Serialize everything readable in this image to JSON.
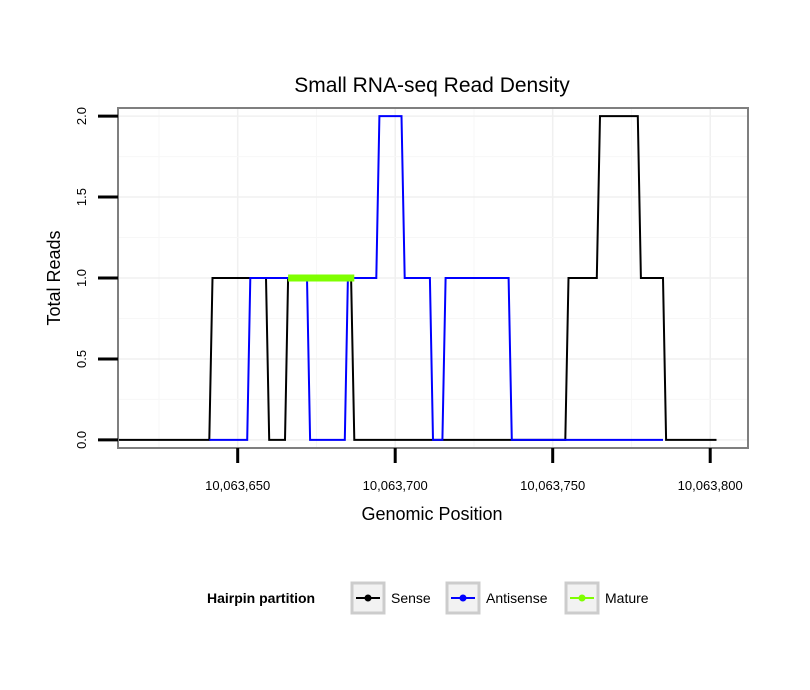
{
  "chart_data": {
    "type": "line",
    "title": "Small RNA-seq Read Density",
    "xlabel": "Genomic Position",
    "ylabel": "Total Reads",
    "xlim": [
      10063612,
      10063812
    ],
    "ylim": [
      -0.05,
      2.05
    ],
    "x_ticks": [
      10063650,
      10063700,
      10063750,
      10063800
    ],
    "x_tick_labels": [
      "10,063,650",
      "10,063,700",
      "10,063,750",
      "10,063,800"
    ],
    "y_ticks": [
      0,
      0.5,
      1,
      1.5,
      2
    ],
    "y_tick_labels": [
      "0.0",
      "0.5",
      "1.0",
      "1.5",
      "2.0"
    ],
    "grid": true,
    "legend": {
      "title": "Hairpin partition",
      "position": "bottom",
      "entries": [
        "Sense",
        "Antisense",
        "Mature"
      ]
    },
    "series": [
      {
        "name": "Sense",
        "color": "#000000",
        "x": [
          10063612,
          10063641,
          10063642,
          10063654,
          10063655,
          10063659,
          10063660,
          10063665,
          10063666,
          10063686,
          10063687,
          10063754,
          10063755,
          10063764,
          10063765,
          10063766,
          10063777,
          10063778,
          10063785,
          10063786,
          10063802
        ],
        "y": [
          0,
          0,
          1,
          1,
          1,
          1,
          0,
          0,
          1,
          1,
          0,
          0,
          1,
          1,
          2,
          2,
          2,
          1,
          1,
          0,
          0
        ]
      },
      {
        "name": "Antisense",
        "color": "#0000ff",
        "x": [
          10063641,
          10063653,
          10063654,
          10063672,
          10063673,
          10063684,
          10063685,
          10063694,
          10063695,
          10063702,
          10063703,
          10063711,
          10063712,
          10063715,
          10063716,
          10063736,
          10063737,
          10063785
        ],
        "y": [
          0,
          0,
          1,
          1,
          0,
          0,
          1,
          1,
          2,
          2,
          1,
          1,
          0,
          0,
          1,
          1,
          0,
          0
        ]
      },
      {
        "name": "Mature",
        "color": "#7fff00",
        "x": [
          10063666,
          10063687
        ],
        "y": [
          1,
          1
        ]
      }
    ]
  }
}
